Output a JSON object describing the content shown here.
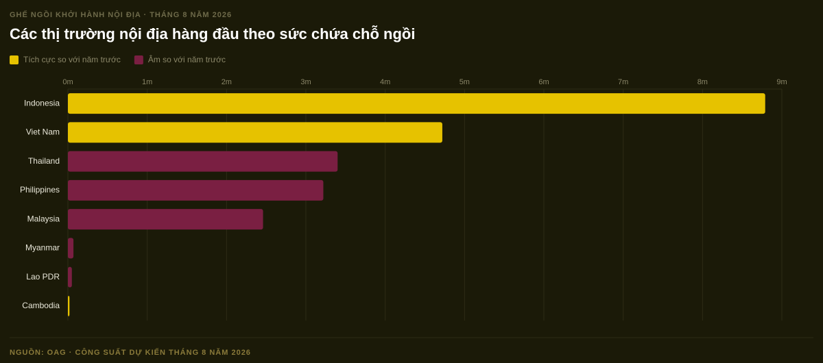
{
  "chart_data": {
    "type": "bar",
    "orientation": "horizontal",
    "supertitle": "GHẾ NGỒI KHỞI HÀNH NỘI ĐỊA · THÁNG 8 NĂM 2026",
    "title": "Các thị trường nội địa hàng đầu theo sức chứa chỗ ngồi",
    "categories": [
      "Indonesia",
      "Viet Nam",
      "Thailand",
      "Philippines",
      "Malaysia",
      "Myanmar",
      "Lao PDR",
      "Cambodia"
    ],
    "series": [
      {
        "name": "Tích cực so với năm trước",
        "color": "#e6c200",
        "values": [
          8.79,
          4.72,
          null,
          null,
          null,
          null,
          null,
          0.02
        ]
      },
      {
        "name": "Âm so với năm trước",
        "color": "#7a1f42",
        "values": [
          null,
          null,
          3.4,
          3.22,
          2.46,
          0.07,
          0.05,
          null
        ]
      }
    ],
    "xlim": [
      0,
      9
    ],
    "xticks": [
      {
        "value": 0,
        "label": "0m"
      },
      {
        "value": 1,
        "label": "1m"
      },
      {
        "value": 2,
        "label": "2m"
      },
      {
        "value": 3,
        "label": "3m"
      },
      {
        "value": 4,
        "label": "4m"
      },
      {
        "value": 5,
        "label": "5m"
      },
      {
        "value": 6,
        "label": "6m"
      },
      {
        "value": 7,
        "label": "7m"
      },
      {
        "value": 8,
        "label": "8m"
      },
      {
        "value": 9,
        "label": "9m"
      }
    ],
    "grid": true,
    "source": "NGUỒN: OAG · CÔNG SUẤT DỰ KIẾN THÁNG 8 NĂM 2026"
  }
}
